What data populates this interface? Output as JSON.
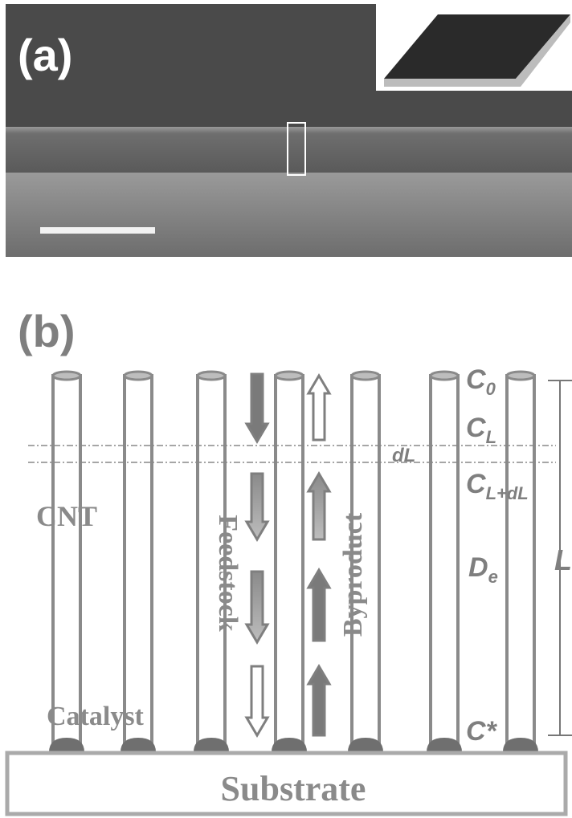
{
  "panel_a": {
    "label": "(a)"
  },
  "panel_b": {
    "label": "(b)",
    "concentrations": [
      {
        "main": "C",
        "sub": "0"
      },
      {
        "main": "C",
        "sub": "L"
      },
      {
        "main": "C",
        "sub": "L+dL"
      },
      {
        "main": "C*"
      }
    ],
    "slice": "dL",
    "diffusivity": {
      "main": "D",
      "sub": "e"
    },
    "length": "L",
    "cnt": "CNT",
    "feedstock": "Feedstock",
    "byproduct": "Byproduct",
    "catalyst": "Catalyst",
    "substrate": "Substrate"
  }
}
